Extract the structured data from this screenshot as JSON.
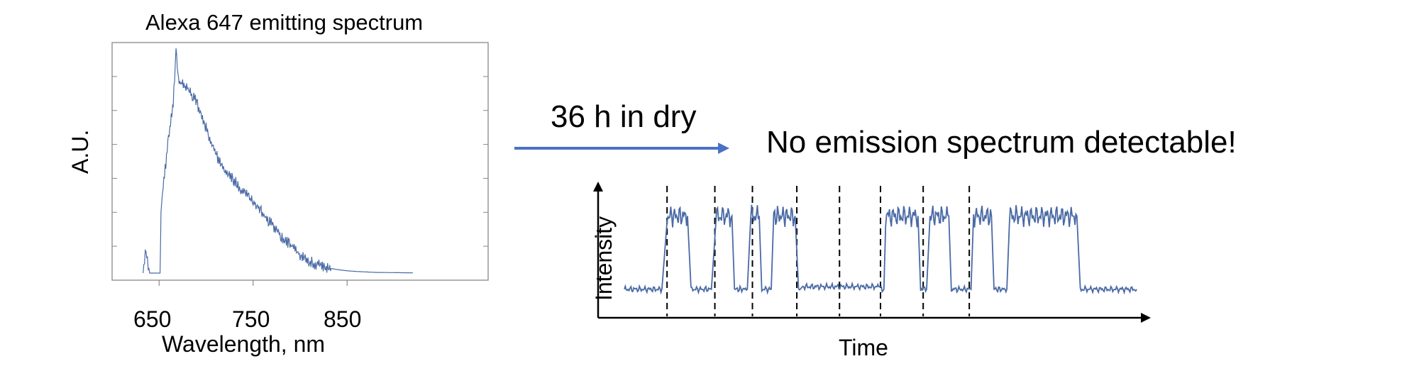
{
  "chart_data": [
    {
      "type": "line",
      "title": "Alexa 647 emitting spectrum",
      "xlabel": "Wavelength, nm",
      "ylabel": "A.U.",
      "xlim": [
        600,
        1000
      ],
      "ylim": [
        0,
        1
      ],
      "x_ticks": [
        "650",
        "750",
        "850"
      ],
      "grid": false,
      "series": [
        {
          "x": [
            633,
            636,
            640,
            645,
            651,
            652,
            655,
            660,
            665,
            668,
            670,
            672,
            675,
            680,
            690,
            700,
            710,
            720,
            730,
            740,
            750,
            760,
            770,
            780,
            790,
            800,
            810,
            820,
            830,
            840,
            850,
            860,
            870,
            880,
            900,
            920
          ],
          "y": [
            0.0,
            0.1,
            0.0,
            0.0,
            0.0,
            0.27,
            0.4,
            0.58,
            0.74,
            0.96,
            0.86,
            0.83,
            0.82,
            0.8,
            0.74,
            0.63,
            0.52,
            0.44,
            0.4,
            0.35,
            0.31,
            0.26,
            0.21,
            0.16,
            0.12,
            0.08,
            0.05,
            0.034,
            0.022,
            0.015,
            0.01,
            0.007,
            0.005,
            0.003,
            0.002,
            0.001
          ]
        }
      ]
    },
    {
      "type": "line",
      "xlabel": "Time",
      "ylabel": "Intensity",
      "ylim": [
        0,
        1
      ],
      "grid": false,
      "series": [
        {
          "x": [
            0,
            2.2,
            2.5,
            3.7,
            3.9,
            5.1,
            5.35,
            6.3,
            6.45,
            7.2,
            7.4,
            7.9,
            8.05,
            8.6,
            8.75,
            10.0,
            10.2,
            10.3,
            10.45,
            14.9,
            15.05,
            15.2,
            15.3,
            17.2,
            17.35,
            17.7,
            17.9,
            19.0,
            19.15,
            20.3,
            20.45,
            21.5,
            21.65,
            22.4,
            22.55,
            26.5,
            26.7,
            30
          ],
          "y": [
            0.15,
            0.15,
            0.72,
            0.72,
            0.15,
            0.15,
            0.72,
            0.72,
            0.15,
            0.15,
            0.72,
            0.72,
            0.15,
            0.15,
            0.72,
            0.72,
            0.15,
            0.15,
            0.17,
            0.17,
            0.15,
            0.15,
            0.72,
            0.72,
            0.15,
            0.15,
            0.72,
            0.72,
            0.15,
            0.15,
            0.72,
            0.72,
            0.15,
            0.15,
            0.72,
            0.72,
            0.15,
            0.15
          ]
        }
      ],
      "dashed_markers_x": [
        2.5,
        5.3,
        7.5,
        10.1,
        12.6,
        15.0,
        17.5,
        20.2
      ]
    }
  ],
  "arrow": {
    "label": "36 h in dry"
  },
  "result_text": "No emission spectrum detectable!",
  "colors": {
    "trace": "#4a6aa5",
    "arrow": "#4a72c4",
    "axis": "#888888"
  }
}
